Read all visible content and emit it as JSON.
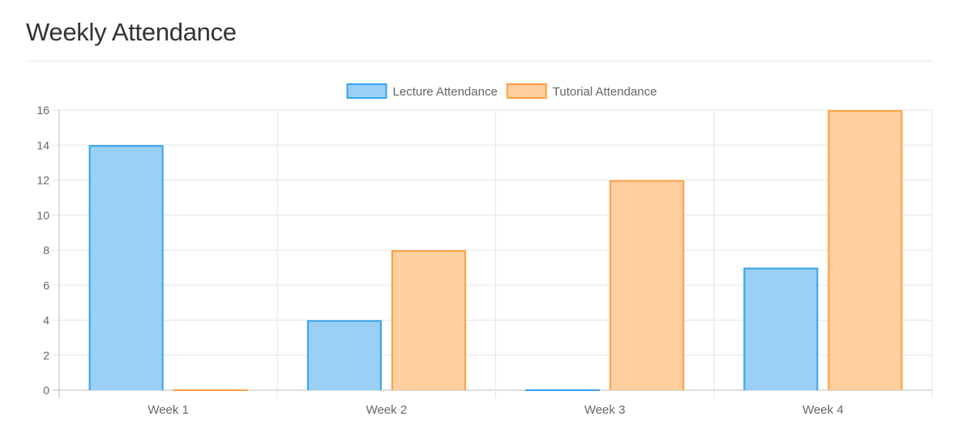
{
  "page": {
    "title": "Weekly Attendance"
  },
  "chart_data": {
    "type": "bar",
    "categories": [
      "Week 1",
      "Week 2",
      "Week 3",
      "Week 4"
    ],
    "series": [
      {
        "name": "Lecture Attendance",
        "values": [
          14,
          4,
          0,
          7
        ],
        "fill": "#9ad0f5",
        "stroke": "#36a2eb"
      },
      {
        "name": "Tutorial Attendance",
        "values": [
          0,
          8,
          12,
          16
        ],
        "fill": "#ffcf9f",
        "stroke": "#ff9f40"
      }
    ],
    "yticks": [
      0,
      2,
      4,
      6,
      8,
      10,
      12,
      14,
      16
    ],
    "ylim": [
      0,
      16
    ],
    "grid": true,
    "legend_position": "top-center",
    "xlabel": "",
    "ylabel": ""
  }
}
